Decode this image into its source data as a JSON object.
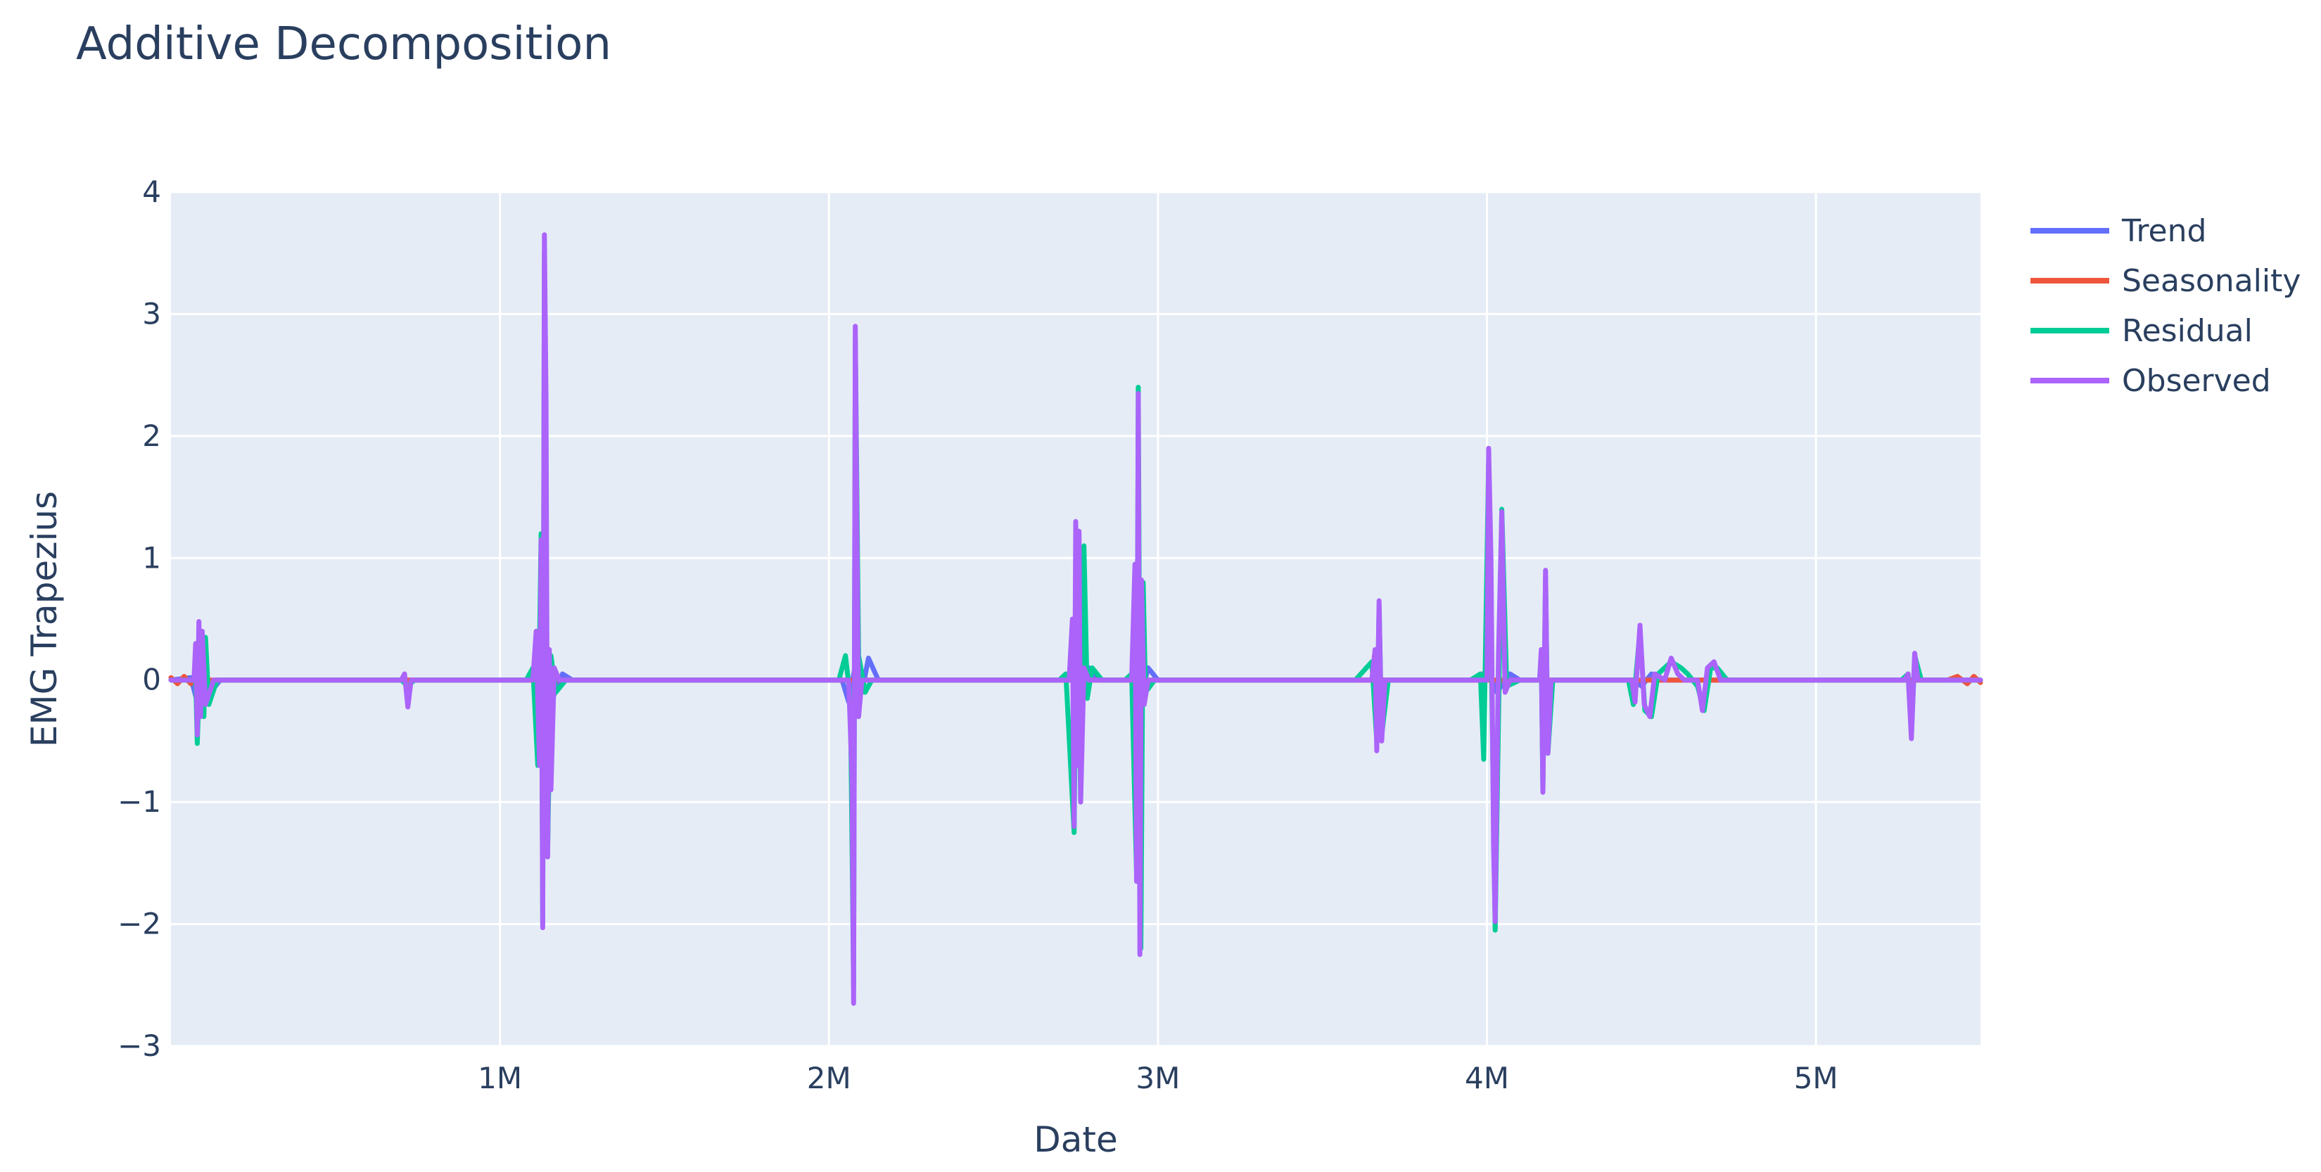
{
  "chart_data": {
    "type": "line",
    "title": "Additive Decomposition",
    "xlabel": "Date",
    "ylabel": "EMG Trapezius",
    "xlim": [
      0,
      5500000
    ],
    "ylim": [
      -3,
      4
    ],
    "x_ticks": [
      {
        "value": 1000000,
        "label": "1M"
      },
      {
        "value": 2000000,
        "label": "2M"
      },
      {
        "value": 3000000,
        "label": "3M"
      },
      {
        "value": 4000000,
        "label": "4M"
      },
      {
        "value": 5000000,
        "label": "5M"
      }
    ],
    "y_ticks": [
      {
        "value": -3,
        "label": "−3"
      },
      {
        "value": -2,
        "label": "−2"
      },
      {
        "value": -1,
        "label": "−1"
      },
      {
        "value": 0,
        "label": "0"
      },
      {
        "value": 1,
        "label": "1"
      },
      {
        "value": 2,
        "label": "2"
      },
      {
        "value": 3,
        "label": "3"
      },
      {
        "value": 4,
        "label": "4"
      }
    ],
    "grid": true,
    "legend_position": "top-right",
    "colors": {
      "plot_background": "#e5ecf6",
      "grid": "#ffffff",
      "text": "#2a3f5f"
    },
    "series": [
      {
        "name": "Trend",
        "color": "#636efa",
        "points": [
          [
            0,
            0
          ],
          [
            60000,
            0.02
          ],
          [
            80000,
            -0.18
          ],
          [
            100000,
            0.15
          ],
          [
            120000,
            -0.1
          ],
          [
            150000,
            0
          ],
          [
            1100000,
            0
          ],
          [
            1120000,
            -0.1
          ],
          [
            1140000,
            0.12
          ],
          [
            1160000,
            -0.15
          ],
          [
            1190000,
            0.05
          ],
          [
            1220000,
            0
          ],
          [
            2040000,
            0
          ],
          [
            2060000,
            -0.18
          ],
          [
            2080000,
            0.12
          ],
          [
            2100000,
            -0.1
          ],
          [
            2120000,
            0.18
          ],
          [
            2150000,
            0
          ],
          [
            2740000,
            0
          ],
          [
            2760000,
            -0.1
          ],
          [
            2790000,
            0.1
          ],
          [
            2820000,
            0
          ],
          [
            2930000,
            0
          ],
          [
            2950000,
            -0.12
          ],
          [
            2970000,
            0.1
          ],
          [
            3000000,
            0
          ],
          [
            3980000,
            0
          ],
          [
            4000000,
            0.1
          ],
          [
            4030000,
            -0.1
          ],
          [
            4070000,
            0.05
          ],
          [
            4100000,
            0
          ],
          [
            4450000,
            0
          ],
          [
            4470000,
            -0.05
          ],
          [
            4500000,
            0.05
          ],
          [
            4530000,
            0
          ],
          [
            5500000,
            0
          ]
        ]
      },
      {
        "name": "Seasonality",
        "color": "#ef553b",
        "points": [
          [
            0,
            0.02
          ],
          [
            20000,
            -0.03
          ],
          [
            40000,
            0.03
          ],
          [
            60000,
            -0.03
          ],
          [
            80000,
            0.02
          ],
          [
            100000,
            0
          ],
          [
            5400000,
            0
          ],
          [
            5430000,
            0.03
          ],
          [
            5460000,
            -0.03
          ],
          [
            5480000,
            0.03
          ],
          [
            5500000,
            -0.02
          ]
        ]
      },
      {
        "name": "Residual",
        "color": "#00cc96",
        "points": [
          [
            0,
            0
          ],
          [
            75000,
            0
          ],
          [
            80000,
            -0.52
          ],
          [
            90000,
            0.3
          ],
          [
            100000,
            -0.3
          ],
          [
            105000,
            0.35
          ],
          [
            115000,
            -0.2
          ],
          [
            140000,
            0
          ],
          [
            700000,
            0
          ],
          [
            720000,
            -0.05
          ],
          [
            740000,
            0
          ],
          [
            1080000,
            0
          ],
          [
            1100000,
            0.1
          ],
          [
            1115000,
            -0.7
          ],
          [
            1125000,
            1.2
          ],
          [
            1130000,
            -2.0
          ],
          [
            1135000,
            3.5
          ],
          [
            1145000,
            -1.4
          ],
          [
            1155000,
            0.2
          ],
          [
            1170000,
            -0.1
          ],
          [
            1200000,
            0
          ],
          [
            2030000,
            0
          ],
          [
            2050000,
            0.2
          ],
          [
            2065000,
            -0.15
          ],
          [
            2075000,
            -2.5
          ],
          [
            2080000,
            2.8
          ],
          [
            2090000,
            0.2
          ],
          [
            2110000,
            -0.1
          ],
          [
            2130000,
            0
          ],
          [
            2700000,
            0
          ],
          [
            2720000,
            0.05
          ],
          [
            2745000,
            -1.25
          ],
          [
            2755000,
            1.2
          ],
          [
            2765000,
            -1.0
          ],
          [
            2775000,
            1.1
          ],
          [
            2785000,
            -0.15
          ],
          [
            2800000,
            0.1
          ],
          [
            2830000,
            0
          ],
          [
            2900000,
            0
          ],
          [
            2920000,
            0.05
          ],
          [
            2935000,
            -1.6
          ],
          [
            2940000,
            2.4
          ],
          [
            2948000,
            -2.2
          ],
          [
            2955000,
            0.8
          ],
          [
            2962000,
            -0.1
          ],
          [
            2990000,
            0
          ],
          [
            3600000,
            0
          ],
          [
            3650000,
            0.15
          ],
          [
            3665000,
            -0.5
          ],
          [
            3672000,
            0.6
          ],
          [
            3680000,
            -0.45
          ],
          [
            3700000,
            0
          ],
          [
            3950000,
            0
          ],
          [
            3980000,
            0.05
          ],
          [
            3990000,
            -0.65
          ],
          [
            4005000,
            1.8
          ],
          [
            4025000,
            -2.05
          ],
          [
            4045000,
            1.4
          ],
          [
            4060000,
            -0.05
          ],
          [
            4100000,
            0
          ],
          [
            4160000,
            0
          ],
          [
            4165000,
            0.2
          ],
          [
            4170000,
            -0.9
          ],
          [
            4178000,
            0.85
          ],
          [
            4185000,
            -0.6
          ],
          [
            4200000,
            0
          ],
          [
            4430000,
            0
          ],
          [
            4445000,
            -0.2
          ],
          [
            4465000,
            0.4
          ],
          [
            4480000,
            -0.25
          ],
          [
            4500000,
            -0.3
          ],
          [
            4520000,
            0.05
          ],
          [
            4560000,
            0.15
          ],
          [
            4590000,
            0.1
          ],
          [
            4610000,
            0.05
          ],
          [
            4640000,
            -0.05
          ],
          [
            4660000,
            -0.25
          ],
          [
            4680000,
            0.1
          ],
          [
            4700000,
            0.1
          ],
          [
            4730000,
            0
          ],
          [
            5260000,
            0
          ],
          [
            5280000,
            0.05
          ],
          [
            5290000,
            -0.45
          ],
          [
            5300000,
            0.2
          ],
          [
            5320000,
            0
          ],
          [
            5500000,
            0
          ]
        ]
      },
      {
        "name": "Observed",
        "color": "#ab63fa",
        "points": [
          [
            0,
            0
          ],
          [
            70000,
            0
          ],
          [
            75000,
            0.3
          ],
          [
            80000,
            -0.45
          ],
          [
            85000,
            0.48
          ],
          [
            90000,
            -0.3
          ],
          [
            95000,
            0.4
          ],
          [
            105000,
            -0.2
          ],
          [
            130000,
            0
          ],
          [
            700000,
            0
          ],
          [
            710000,
            0.05
          ],
          [
            720000,
            -0.22
          ],
          [
            730000,
            0
          ],
          [
            1100000,
            0
          ],
          [
            1110000,
            0.4
          ],
          [
            1120000,
            -0.7
          ],
          [
            1125000,
            1.15
          ],
          [
            1130000,
            -2.03
          ],
          [
            1135000,
            3.65
          ],
          [
            1140000,
            2.3
          ],
          [
            1145000,
            -1.45
          ],
          [
            1150000,
            0.25
          ],
          [
            1155000,
            -0.9
          ],
          [
            1165000,
            0.1
          ],
          [
            1180000,
            0
          ],
          [
            2060000,
            0
          ],
          [
            2070000,
            -0.8
          ],
          [
            2075000,
            -2.65
          ],
          [
            2080000,
            2.9
          ],
          [
            2085000,
            1.2
          ],
          [
            2090000,
            -0.3
          ],
          [
            2100000,
            0
          ],
          [
            2730000,
            0
          ],
          [
            2740000,
            0.5
          ],
          [
            2745000,
            -1.2
          ],
          [
            2750000,
            1.3
          ],
          [
            2755000,
            -0.7
          ],
          [
            2760000,
            1.22
          ],
          [
            2765000,
            -1.0
          ],
          [
            2775000,
            0.1
          ],
          [
            2790000,
            0
          ],
          [
            2920000,
            0
          ],
          [
            2930000,
            0.95
          ],
          [
            2935000,
            -1.65
          ],
          [
            2940000,
            2.35
          ],
          [
            2945000,
            -2.25
          ],
          [
            2950000,
            0.82
          ],
          [
            2958000,
            -0.2
          ],
          [
            2970000,
            0
          ],
          [
            3650000,
            0
          ],
          [
            3660000,
            0.25
          ],
          [
            3665000,
            -0.58
          ],
          [
            3672000,
            0.65
          ],
          [
            3680000,
            -0.5
          ],
          [
            3690000,
            0
          ],
          [
            4000000,
            0
          ],
          [
            4005000,
            1.9
          ],
          [
            4012000,
            1.0
          ],
          [
            4020000,
            -1.35
          ],
          [
            4025000,
            -1.98
          ],
          [
            4035000,
            0.2
          ],
          [
            4045000,
            1.38
          ],
          [
            4055000,
            -0.1
          ],
          [
            4070000,
            0
          ],
          [
            4160000,
            0
          ],
          [
            4165000,
            0.25
          ],
          [
            4170000,
            -0.92
          ],
          [
            4178000,
            0.9
          ],
          [
            4185000,
            -0.6
          ],
          [
            4195000,
            0
          ],
          [
            4440000,
            0
          ],
          [
            4450000,
            -0.18
          ],
          [
            4465000,
            0.45
          ],
          [
            4478000,
            -0.2
          ],
          [
            4495000,
            -0.3
          ],
          [
            4510000,
            0.05
          ],
          [
            4540000,
            0
          ],
          [
            4560000,
            0.18
          ],
          [
            4580000,
            0.05
          ],
          [
            4600000,
            0
          ],
          [
            4640000,
            0
          ],
          [
            4655000,
            -0.25
          ],
          [
            4670000,
            0.1
          ],
          [
            4690000,
            0.15
          ],
          [
            4710000,
            0
          ],
          [
            5270000,
            0
          ],
          [
            5280000,
            0.05
          ],
          [
            5290000,
            -0.48
          ],
          [
            5300000,
            0.22
          ],
          [
            5310000,
            0
          ],
          [
            5500000,
            0
          ]
        ]
      }
    ]
  }
}
